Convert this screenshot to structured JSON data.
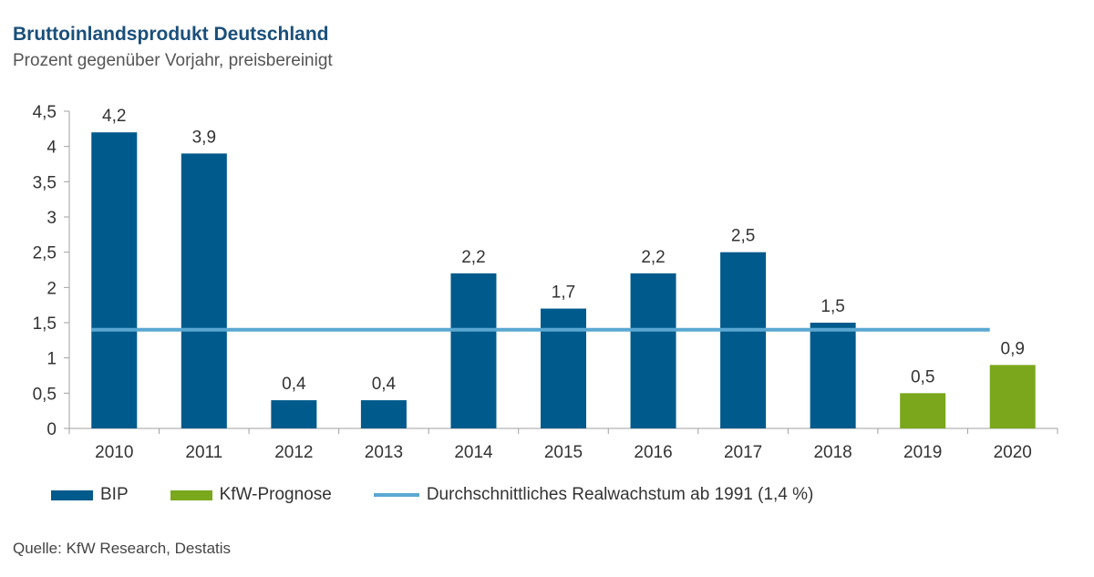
{
  "header": {
    "title": "Bruttoinlandsprodukt Deutschland",
    "subtitle": "Prozent gegenüber Vorjahr, preisbereinigt"
  },
  "legend": {
    "bip": "BIP",
    "forecast": "KfW-Prognose",
    "average": "Durchschnittliches Realwachstum ab 1991 (1,4 %)"
  },
  "source": "Quelle: KfW Research, Destatis",
  "colors": {
    "bip": "#005a8c",
    "forecast": "#7aa71c",
    "average": "#5aa8d2",
    "axis": "#a0a0a0"
  },
  "chart_data": {
    "type": "bar",
    "categories": [
      "2010",
      "2011",
      "2012",
      "2013",
      "2014",
      "2015",
      "2016",
      "2017",
      "2018",
      "2019",
      "2020"
    ],
    "series": [
      {
        "name": "BIP",
        "values": [
          4.2,
          3.9,
          0.4,
          0.4,
          2.2,
          1.7,
          2.2,
          2.5,
          1.5,
          null,
          null
        ]
      },
      {
        "name": "KfW-Prognose",
        "values": [
          null,
          null,
          null,
          null,
          null,
          null,
          null,
          null,
          null,
          0.5,
          0.9
        ]
      }
    ],
    "data_labels": [
      "4,2",
      "3,9",
      "0,4",
      "0,4",
      "2,2",
      "1,7",
      "2,2",
      "2,5",
      "1,5",
      "0,5",
      "0,9"
    ],
    "reference_line": {
      "name": "Durchschnittliches Realwachstum ab 1991 (1,4 %)",
      "value": 1.4
    },
    "y_ticks": [
      0,
      0.5,
      1,
      1.5,
      2,
      2.5,
      3,
      3.5,
      4,
      4.5
    ],
    "y_tick_labels": [
      "0",
      "0,5",
      "1",
      "1,5",
      "2",
      "2,5",
      "3",
      "3,5",
      "4",
      "4,5"
    ],
    "ylim": [
      0,
      4.5
    ],
    "grid": false,
    "legend_position": "bottom-left"
  }
}
